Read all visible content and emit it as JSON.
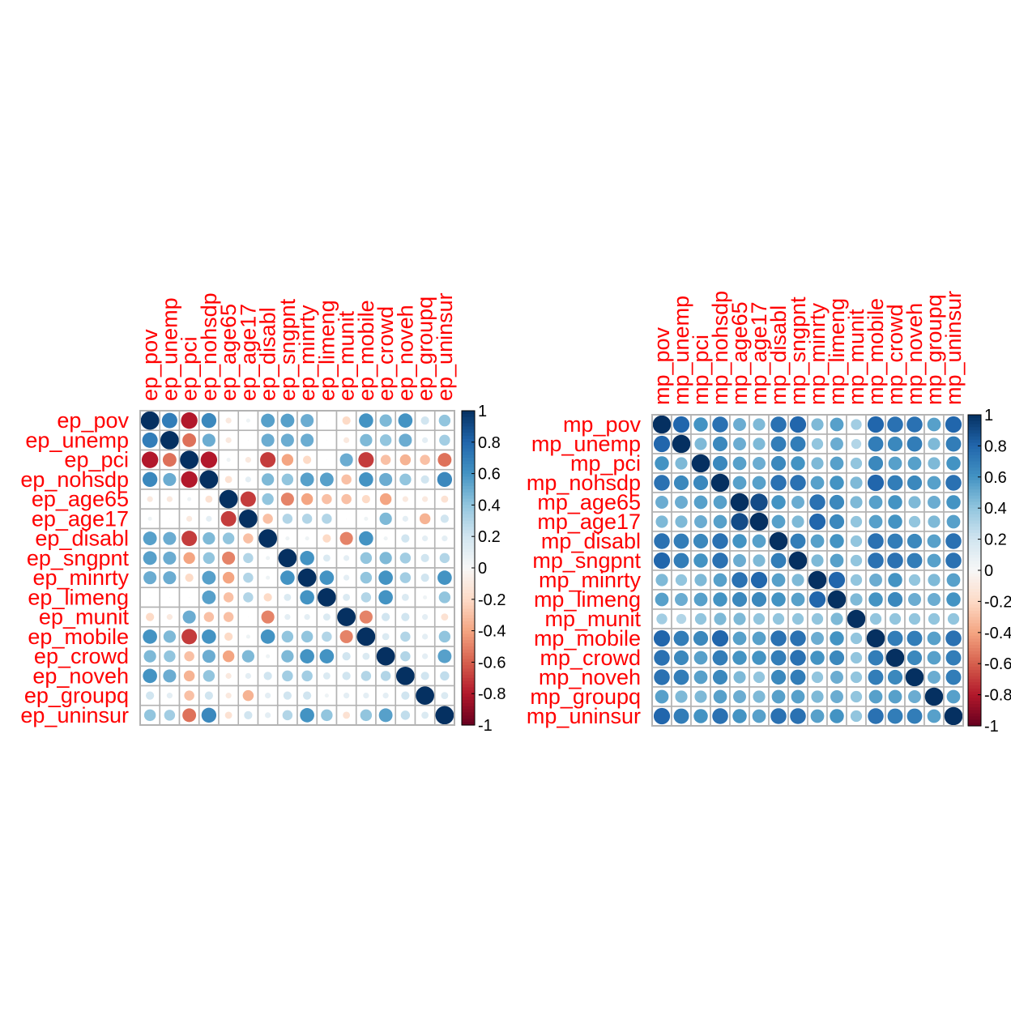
{
  "chart_data": [
    {
      "type": "heatmap",
      "labels": [
        "ep_pov",
        "ep_unemp",
        "ep_pci",
        "ep_nohsdp",
        "ep_age65",
        "ep_age17",
        "ep_disabl",
        "ep_sngpnt",
        "ep_minrty",
        "ep_limeng",
        "ep_munit",
        "ep_mobile",
        "ep_crowd",
        "ep_noveh",
        "ep_groupq",
        "ep_uninsur"
      ],
      "matrix": [
        [
          1.0,
          0.7,
          -0.8,
          0.65,
          -0.1,
          0.05,
          0.55,
          0.55,
          0.5,
          0.0,
          -0.2,
          0.6,
          0.45,
          0.6,
          0.2,
          0.4
        ],
        [
          0.7,
          1.0,
          -0.55,
          0.5,
          -0.1,
          0.0,
          0.5,
          0.5,
          0.5,
          0.0,
          -0.1,
          0.45,
          0.4,
          0.5,
          0.1,
          0.35
        ],
        [
          -0.8,
          -0.55,
          1.0,
          -0.8,
          0.05,
          -0.1,
          -0.7,
          -0.4,
          -0.2,
          0.0,
          0.5,
          -0.7,
          -0.3,
          -0.35,
          -0.3,
          -0.55
        ],
        [
          0.65,
          0.5,
          -0.8,
          1.0,
          -0.15,
          0.1,
          0.45,
          0.4,
          0.55,
          0.55,
          -0.3,
          0.6,
          0.5,
          0.4,
          0.2,
          0.65
        ],
        [
          -0.1,
          -0.1,
          0.05,
          -0.15,
          1.0,
          -0.7,
          0.4,
          -0.5,
          -0.4,
          -0.3,
          -0.3,
          -0.2,
          -0.4,
          -0.1,
          -0.1,
          -0.15
        ],
        [
          0.05,
          0.0,
          -0.1,
          0.1,
          -0.7,
          1.0,
          -0.3,
          0.3,
          0.3,
          0.3,
          0.0,
          0.05,
          0.45,
          0.1,
          -0.35,
          0.2
        ],
        [
          0.55,
          0.5,
          -0.7,
          0.45,
          0.4,
          -0.3,
          1.0,
          0.05,
          0.05,
          -0.2,
          -0.5,
          0.6,
          0.05,
          0.2,
          0.1,
          0.1
        ],
        [
          0.55,
          0.5,
          -0.4,
          0.4,
          -0.5,
          0.3,
          0.05,
          1.0,
          0.6,
          0.15,
          0.1,
          0.4,
          0.45,
          0.35,
          0.2,
          0.3
        ],
        [
          0.5,
          0.5,
          -0.2,
          0.55,
          -0.4,
          0.3,
          0.05,
          0.6,
          1.0,
          0.6,
          0.1,
          0.4,
          0.6,
          0.35,
          0.2,
          0.6
        ],
        [
          0.0,
          0.0,
          0.0,
          0.55,
          -0.3,
          0.3,
          -0.2,
          0.15,
          0.6,
          1.0,
          0.15,
          0.3,
          0.6,
          0.15,
          0.05,
          0.4
        ],
        [
          -0.2,
          -0.1,
          0.5,
          -0.3,
          -0.3,
          0.0,
          -0.5,
          0.1,
          0.1,
          0.15,
          1.0,
          -0.5,
          0.2,
          0.2,
          0.1,
          -0.15
        ],
        [
          0.6,
          0.45,
          -0.7,
          0.6,
          -0.2,
          0.05,
          0.6,
          0.4,
          0.4,
          0.3,
          -0.5,
          1.0,
          0.15,
          0.3,
          0.1,
          0.4
        ],
        [
          0.45,
          0.4,
          -0.3,
          0.5,
          -0.4,
          0.45,
          0.05,
          0.45,
          0.6,
          0.6,
          0.2,
          0.15,
          1.0,
          0.3,
          0.1,
          0.55
        ],
        [
          0.6,
          0.5,
          -0.35,
          0.4,
          -0.1,
          0.1,
          0.2,
          0.35,
          0.35,
          0.15,
          0.2,
          0.3,
          0.3,
          1.0,
          0.2,
          0.25
        ],
        [
          0.2,
          0.1,
          -0.3,
          0.2,
          -0.1,
          -0.35,
          0.1,
          0.2,
          0.2,
          0.05,
          0.1,
          0.1,
          0.1,
          0.2,
          1.0,
          0.15
        ],
        [
          0.4,
          0.35,
          -0.55,
          0.65,
          -0.15,
          0.2,
          0.1,
          0.3,
          0.6,
          0.4,
          -0.15,
          0.4,
          0.55,
          0.25,
          0.15,
          1.0
        ]
      ],
      "scale": {
        "min": -1,
        "max": 1,
        "ticks": [
          "1",
          "0.8",
          "0.6",
          "0.4",
          "0.2",
          "0",
          "-0.2",
          "-0.4",
          "-0.6",
          "-0.8",
          "-1"
        ]
      }
    },
    {
      "type": "heatmap",
      "labels": [
        "mp_pov",
        "mp_unemp",
        "mp_pci",
        "mp_nohsdp",
        "mp_age65",
        "mp_age17",
        "mp_disabl",
        "mp_sngpnt",
        "mp_minrty",
        "mp_limeng",
        "mp_munit",
        "mp_mobile",
        "mp_crowd",
        "mp_noveh",
        "mp_groupq",
        "mp_uninsur"
      ],
      "matrix": [
        [
          1.0,
          0.8,
          0.6,
          0.75,
          0.5,
          0.45,
          0.75,
          0.8,
          0.45,
          0.55,
          0.35,
          0.8,
          0.75,
          0.75,
          0.55,
          0.8
        ],
        [
          0.8,
          1.0,
          0.45,
          0.65,
          0.5,
          0.45,
          0.7,
          0.7,
          0.4,
          0.5,
          0.3,
          0.7,
          0.65,
          0.7,
          0.45,
          0.7
        ],
        [
          0.6,
          0.45,
          1.0,
          0.65,
          0.55,
          0.5,
          0.65,
          0.6,
          0.45,
          0.55,
          0.4,
          0.65,
          0.55,
          0.55,
          0.45,
          0.6
        ],
        [
          0.75,
          0.65,
          0.65,
          1.0,
          0.55,
          0.55,
          0.75,
          0.75,
          0.55,
          0.6,
          0.45,
          0.8,
          0.7,
          0.65,
          0.55,
          0.75
        ],
        [
          0.5,
          0.5,
          0.55,
          0.55,
          1.0,
          0.9,
          0.6,
          0.5,
          0.75,
          0.65,
          0.45,
          0.55,
          0.6,
          0.45,
          0.5,
          0.6
        ],
        [
          0.45,
          0.45,
          0.5,
          0.55,
          0.9,
          1.0,
          0.55,
          0.45,
          0.8,
          0.65,
          0.4,
          0.55,
          0.6,
          0.4,
          0.45,
          0.55
        ],
        [
          0.75,
          0.7,
          0.65,
          0.75,
          0.6,
          0.55,
          1.0,
          0.7,
          0.55,
          0.6,
          0.4,
          0.75,
          0.7,
          0.65,
          0.55,
          0.75
        ],
        [
          0.8,
          0.7,
          0.6,
          0.75,
          0.5,
          0.45,
          0.7,
          1.0,
          0.45,
          0.55,
          0.4,
          0.75,
          0.75,
          0.7,
          0.55,
          0.75
        ],
        [
          0.45,
          0.4,
          0.45,
          0.55,
          0.75,
          0.8,
          0.55,
          0.45,
          1.0,
          0.8,
          0.4,
          0.5,
          0.6,
          0.4,
          0.45,
          0.55
        ],
        [
          0.55,
          0.5,
          0.55,
          0.6,
          0.65,
          0.65,
          0.6,
          0.55,
          0.8,
          1.0,
          0.45,
          0.6,
          0.65,
          0.5,
          0.5,
          0.6
        ],
        [
          0.35,
          0.3,
          0.4,
          0.45,
          0.45,
          0.4,
          0.4,
          0.4,
          0.4,
          0.45,
          1.0,
          0.4,
          0.4,
          0.4,
          0.4,
          0.4
        ],
        [
          0.8,
          0.7,
          0.65,
          0.8,
          0.55,
          0.55,
          0.75,
          0.75,
          0.5,
          0.6,
          0.4,
          1.0,
          0.7,
          0.7,
          0.55,
          0.75
        ],
        [
          0.75,
          0.65,
          0.55,
          0.7,
          0.6,
          0.6,
          0.7,
          0.75,
          0.6,
          0.65,
          0.4,
          0.7,
          1.0,
          0.65,
          0.55,
          0.7
        ],
        [
          0.75,
          0.7,
          0.55,
          0.65,
          0.45,
          0.4,
          0.65,
          0.7,
          0.4,
          0.5,
          0.4,
          0.7,
          0.65,
          1.0,
          0.5,
          0.7
        ],
        [
          0.55,
          0.45,
          0.45,
          0.55,
          0.5,
          0.45,
          0.55,
          0.55,
          0.45,
          0.5,
          0.4,
          0.55,
          0.55,
          0.5,
          1.0,
          0.55
        ],
        [
          0.8,
          0.7,
          0.6,
          0.75,
          0.6,
          0.55,
          0.75,
          0.75,
          0.55,
          0.6,
          0.4,
          0.75,
          0.7,
          0.7,
          0.55,
          1.0
        ]
      ],
      "scale": {
        "min": -1,
        "max": 1,
        "ticks": [
          "1",
          "0.8",
          "0.6",
          "0.4",
          "0.2",
          "0",
          "-0.2",
          "-0.4",
          "-0.6",
          "-0.8",
          "-1"
        ]
      }
    }
  ]
}
